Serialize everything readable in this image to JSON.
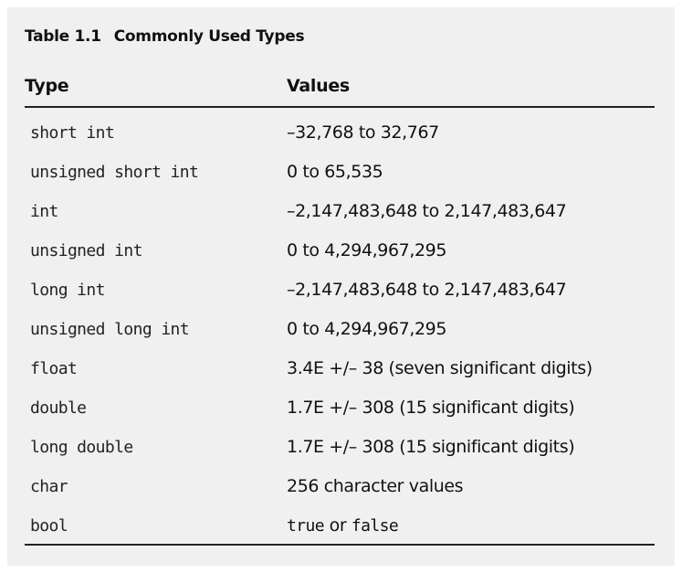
{
  "caption": {
    "number": "Table 1.1",
    "title": "Commonly Used Types"
  },
  "headers": {
    "type": "Type",
    "values": "Values"
  },
  "rows": [
    {
      "type": "short int",
      "values": "–32,768 to 32,767"
    },
    {
      "type": "unsigned short int",
      "values": "0 to 65,535"
    },
    {
      "type": "int",
      "values": "–2,147,483,648 to 2,147,483,647"
    },
    {
      "type": "unsigned int",
      "values": "0 to 4,294,967,295"
    },
    {
      "type": "long int",
      "values": "–2,147,483,648 to 2,147,483,647"
    },
    {
      "type": "unsigned long int",
      "values": "0 to 4,294,967,295"
    },
    {
      "type": "float",
      "values": "3.4E +/– 38 (seven significant digits)"
    },
    {
      "type": "double",
      "values": "1.7E +/– 308 (15 significant digits)"
    },
    {
      "type": "long double",
      "values": "1.7E +/– 308 (15 significant digits)"
    },
    {
      "type": "char",
      "values": "256 character values"
    },
    {
      "type": "bool",
      "values_parts": {
        "a": "true",
        "or": "or",
        "b": "false"
      }
    }
  ]
}
